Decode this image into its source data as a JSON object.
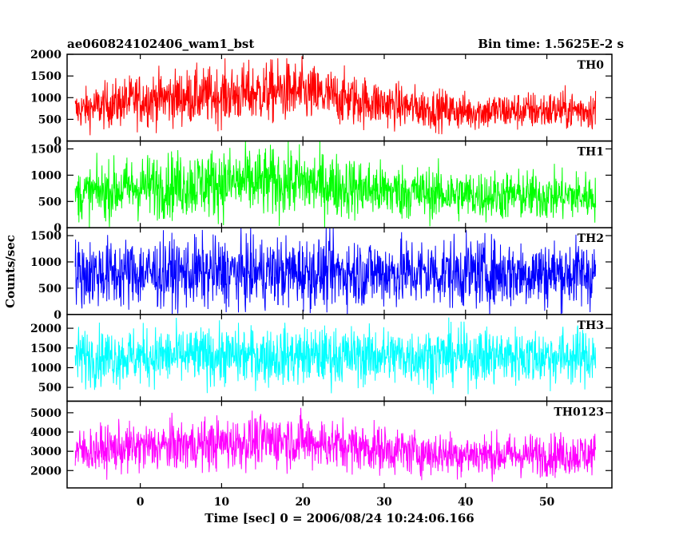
{
  "header": {
    "left_title": "ae060824102406_wam1_bst",
    "right_title": "Bin time: 1.5625E-2 s"
  },
  "chart_data": {
    "type": "line",
    "title": "ae060824102406_wam1_bst",
    "subtitle": "Bin time: 1.5625E-2 s",
    "xlabel": "Time [sec] 0 = 2006/08/24 10:24:06.166",
    "ylabel": "Counts/sec",
    "xlim": [
      -9,
      58
    ],
    "x_ticks": [
      0,
      10,
      20,
      30,
      40,
      50
    ],
    "x_data_range": [
      -8,
      56
    ],
    "grid": false,
    "legend": "none",
    "panels": [
      {
        "name": "TH0",
        "color": "#ff0000",
        "ylim": [
          0,
          2000
        ],
        "y_ticks": [
          0,
          500,
          1000,
          1500,
          2000
        ],
        "trend": [
          [
            -8,
            700
          ],
          [
            0,
            960
          ],
          [
            10,
            1050
          ],
          [
            18,
            1150
          ],
          [
            25,
            980
          ],
          [
            32,
            800
          ],
          [
            40,
            680
          ],
          [
            48,
            700
          ],
          [
            56,
            720
          ]
        ],
        "spread": 0.45
      },
      {
        "name": "TH1",
        "color": "#00ff00",
        "ylim": [
          0,
          1650
        ],
        "y_ticks": [
          0,
          500,
          1000,
          1500
        ],
        "trend": [
          [
            -8,
            620
          ],
          [
            0,
            780
          ],
          [
            10,
            860
          ],
          [
            20,
            860
          ],
          [
            30,
            700
          ],
          [
            40,
            620
          ],
          [
            56,
            600
          ]
        ],
        "spread": 0.55
      },
      {
        "name": "TH2",
        "color": "#0000ff",
        "ylim": [
          0,
          1650
        ],
        "y_ticks": [
          0,
          500,
          1000,
          1500
        ],
        "trend": [
          [
            -8,
            780
          ],
          [
            20,
            800
          ],
          [
            40,
            790
          ],
          [
            56,
            780
          ]
        ],
        "spread": 0.6
      },
      {
        "name": "TH3",
        "color": "#00ffff",
        "ylim": [
          150,
          2350
        ],
        "y_ticks": [
          500,
          1000,
          1500,
          2000
        ],
        "trend": [
          [
            -8,
            1280
          ],
          [
            20,
            1300
          ],
          [
            40,
            1290
          ],
          [
            56,
            1280
          ]
        ],
        "spread": 0.4
      },
      {
        "name": "TH0123",
        "color": "#ff00ff",
        "ylim": [
          1100,
          5600
        ],
        "y_ticks": [
          2000,
          3000,
          4000,
          5000
        ],
        "trend": [
          [
            -8,
            3000
          ],
          [
            0,
            3200
          ],
          [
            10,
            3400
          ],
          [
            18,
            3600
          ],
          [
            25,
            3300
          ],
          [
            35,
            2900
          ],
          [
            45,
            2800
          ],
          [
            56,
            2850
          ]
        ],
        "spread": 0.28
      }
    ]
  }
}
